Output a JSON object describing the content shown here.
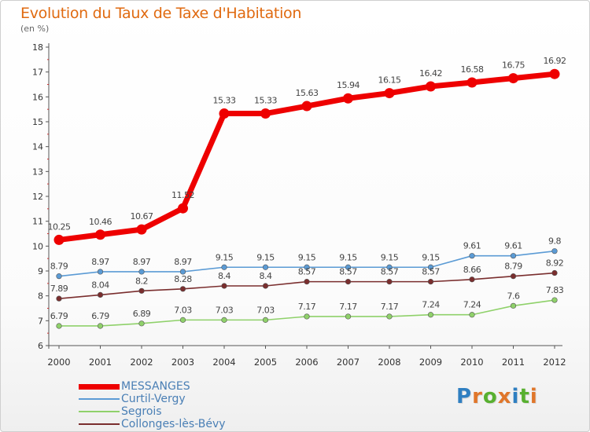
{
  "chart_data": {
    "type": "line",
    "title": "Evolution du Taux de Taxe d'Habitation",
    "subtitle": "(en %)",
    "x": [
      "2000",
      "2001",
      "2002",
      "2003",
      "2004",
      "2005",
      "2006",
      "2007",
      "2008",
      "2009",
      "2010",
      "2011",
      "2012"
    ],
    "ylim": [
      6,
      18
    ],
    "yticks": [
      "6",
      "7",
      "8",
      "9",
      "10",
      "11",
      "12",
      "13",
      "14",
      "15",
      "16",
      "17",
      "18"
    ],
    "grid": false,
    "legend_position": "bottom-left",
    "series": [
      {
        "name": "MESSANGES",
        "color": "#ee0000",
        "values": [
          10.25,
          10.46,
          10.67,
          11.52,
          15.33,
          15.33,
          15.63,
          15.94,
          16.15,
          16.42,
          16.58,
          16.75,
          16.92
        ],
        "labels": [
          "10.25",
          "10.46",
          "10.67",
          "11.52",
          "15.33",
          "15.33",
          "15.63",
          "15.94",
          "16.15",
          "16.42",
          "16.58",
          "16.75",
          "16.92"
        ]
      },
      {
        "name": "Curtil-Vergy",
        "color": "#5b9bd5",
        "values": [
          8.79,
          8.97,
          8.97,
          8.97,
          9.15,
          9.15,
          9.15,
          9.15,
          9.15,
          9.15,
          9.61,
          9.61,
          9.8
        ],
        "labels": [
          "8.79",
          "8.97",
          "8.97",
          "8.97",
          "9.15",
          "9.15",
          "9.15",
          "9.15",
          "9.15",
          "9.15",
          "9.61",
          "9.61",
          "9.8"
        ]
      },
      {
        "name": "Segrois",
        "color": "#8fd16a",
        "values": [
          6.79,
          6.79,
          6.89,
          7.03,
          7.03,
          7.03,
          7.17,
          7.17,
          7.17,
          7.24,
          7.24,
          7.6,
          7.83
        ],
        "labels": [
          "6.79",
          "6.79",
          "6.89",
          "7.03",
          "7.03",
          "7.03",
          "7.17",
          "7.17",
          "7.17",
          "7.24",
          "7.24",
          "7.6",
          "7.83"
        ]
      },
      {
        "name": "Collonges-lès-Bévy",
        "color": "#7a2e2e",
        "values": [
          7.89,
          8.04,
          8.2,
          8.28,
          8.4,
          8.4,
          8.57,
          8.57,
          8.57,
          8.57,
          8.66,
          8.79,
          8.92
        ],
        "labels": [
          "7.89",
          "8.04",
          "8.2",
          "8.28",
          "8.4",
          "8.4",
          "8.57",
          "8.57",
          "8.57",
          "8.57",
          "8.66",
          "8.79",
          "8.92"
        ]
      }
    ]
  },
  "logo": {
    "letters": [
      "P",
      "r",
      "o",
      "x",
      "i",
      "t",
      "i"
    ],
    "colors": [
      "#2f7fc1",
      "#e0762a",
      "#58b030",
      "#e0762a",
      "#2f7fc1",
      "#58b030",
      "#e0762a"
    ]
  }
}
